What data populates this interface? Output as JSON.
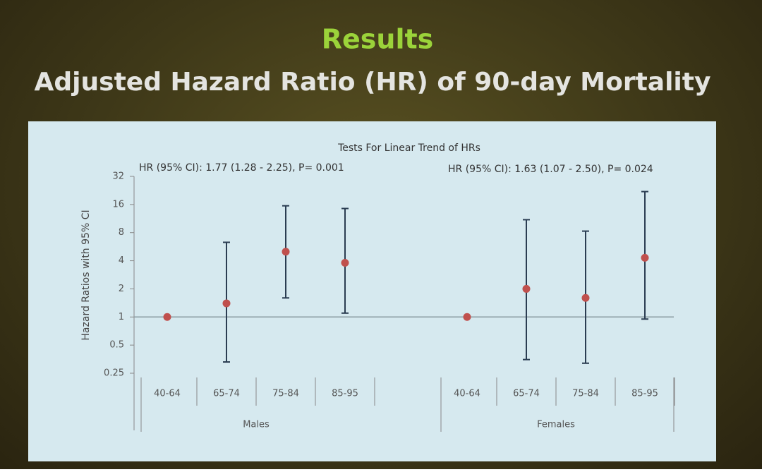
{
  "chart_data": {
    "type": "errorbar",
    "title": "Results",
    "subtitle": "Adjusted Hazard Ratio (HR) of 90-day Mortality",
    "chart_title": "Tests For Linear Trend of HRs",
    "annotations": [
      "HR (95% CI): 1.77 (1.28 - 2.25), P= 0.001",
      "HR (95% CI): 1.63 (1.07 - 2.50), P= 0.024"
    ],
    "ylabel": "Hazard Ratios with 95% CI",
    "log_scale": true,
    "ylim": [
      0.25,
      32
    ],
    "yticks": [
      0.25,
      0.5,
      1,
      2,
      4,
      8,
      16,
      32
    ],
    "reference_line": 1,
    "point_color": "#c0504d",
    "bar_color": "#2b3d52",
    "groups": [
      {
        "name": "Males",
        "categories": [
          "40-64",
          "65-74",
          "75-84",
          "85-95"
        ],
        "values": [
          1,
          1.4,
          5.0,
          3.8
        ],
        "lower": [
          null,
          0.33,
          1.6,
          1.1
        ],
        "upper": [
          null,
          6.3,
          15.5,
          14.5
        ]
      },
      {
        "name": "Females",
        "categories": [
          "40-64",
          "65-74",
          "75-84",
          "85-95"
        ],
        "values": [
          1,
          2.0,
          1.6,
          4.3
        ],
        "lower": [
          null,
          0.35,
          0.32,
          0.95
        ],
        "upper": [
          null,
          11,
          8.3,
          22
        ]
      }
    ]
  }
}
